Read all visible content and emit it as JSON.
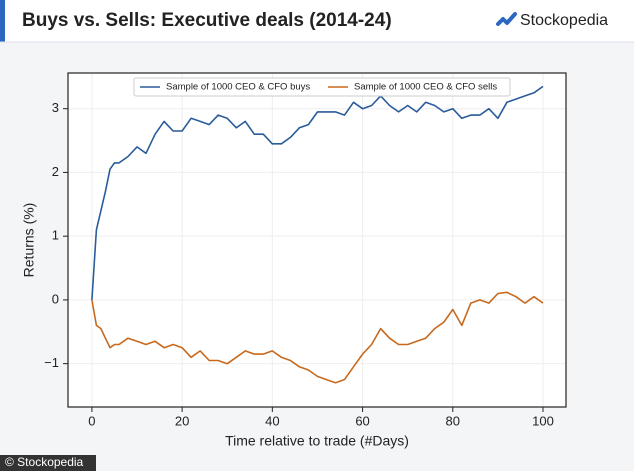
{
  "brand": "Stockopedia",
  "credit": "© Stockopedia",
  "chart_data": {
    "type": "line",
    "title": "Buys vs. Sells: Executive deals (2014-24)",
    "xlabel": "Time relative to trade (#Days)",
    "ylabel": "Returns (%)",
    "x": [
      0,
      1,
      2,
      3,
      4,
      5,
      6,
      8,
      10,
      12,
      14,
      16,
      18,
      20,
      22,
      24,
      26,
      28,
      30,
      32,
      34,
      36,
      38,
      40,
      42,
      44,
      46,
      48,
      50,
      52,
      54,
      56,
      58,
      60,
      62,
      64,
      66,
      68,
      70,
      72,
      74,
      76,
      78,
      80,
      82,
      84,
      86,
      88,
      90,
      92,
      94,
      96,
      98,
      100
    ],
    "series": [
      {
        "name": "Sample of 1000 CEO & CFO buys",
        "color": "#2a5c9a",
        "values": [
          0,
          1.1,
          1.4,
          1.7,
          2.05,
          2.15,
          2.15,
          2.25,
          2.4,
          2.3,
          2.6,
          2.8,
          2.65,
          2.65,
          2.85,
          2.8,
          2.75,
          2.9,
          2.85,
          2.7,
          2.8,
          2.6,
          2.6,
          2.45,
          2.45,
          2.55,
          2.7,
          2.75,
          2.95,
          2.95,
          2.95,
          2.9,
          3.1,
          3.0,
          3.05,
          3.2,
          3.05,
          2.95,
          3.05,
          2.95,
          3.1,
          3.05,
          2.95,
          3.0,
          2.85,
          2.9,
          2.9,
          3.0,
          2.85,
          3.1,
          3.15,
          3.2,
          3.25,
          3.35
        ]
      },
      {
        "name": "Sample of 1000 CEO & CFO sells",
        "color": "#c8691d",
        "values": [
          0,
          -0.4,
          -0.45,
          -0.6,
          -0.75,
          -0.7,
          -0.7,
          -0.6,
          -0.65,
          -0.7,
          -0.65,
          -0.75,
          -0.7,
          -0.75,
          -0.9,
          -0.8,
          -0.95,
          -0.95,
          -1.0,
          -0.9,
          -0.8,
          -0.85,
          -0.85,
          -0.8,
          -0.9,
          -0.95,
          -1.05,
          -1.1,
          -1.2,
          -1.25,
          -1.3,
          -1.25,
          -1.05,
          -0.85,
          -0.7,
          -0.45,
          -0.6,
          -0.7,
          -0.7,
          -0.65,
          -0.6,
          -0.45,
          -0.35,
          -0.15,
          -0.4,
          -0.05,
          0,
          -0.05,
          0.1,
          0.12,
          0.05,
          -0.05,
          0.05,
          -0.05
        ]
      }
    ],
    "xlim": [
      -5.3,
      105.1
    ],
    "ylim": [
      -1.68,
      3.56
    ],
    "xticks": [
      0,
      20,
      40,
      60,
      80,
      100
    ],
    "yticks": [
      {
        "value": -1,
        "label": "−1"
      },
      0,
      1,
      2,
      3
    ],
    "grid": true,
    "legend": "top"
  }
}
